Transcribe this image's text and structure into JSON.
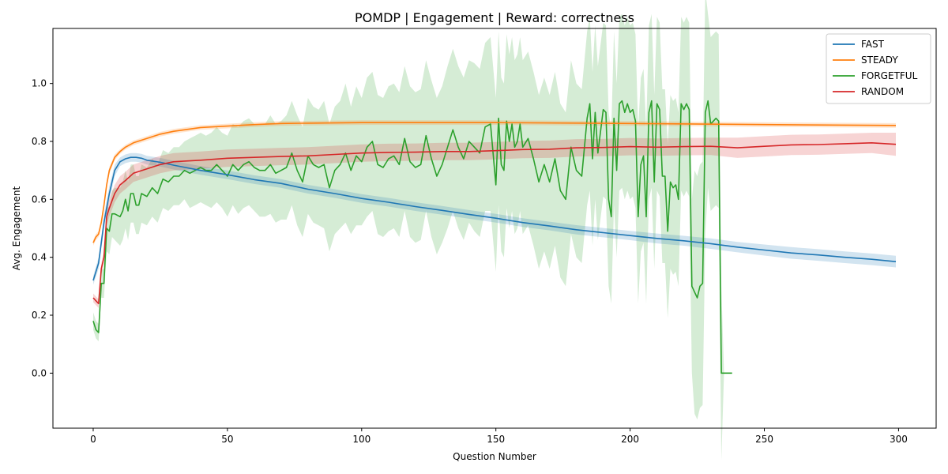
{
  "chart_data": {
    "type": "line",
    "title": "POMDP | Engagement | Reward: correctness",
    "xlabel": "Question Number",
    "ylabel": "Avg. Engagement",
    "xlim": [
      -15,
      314
    ],
    "ylim": [
      -0.19,
      1.19
    ],
    "xticks": [
      0,
      50,
      100,
      150,
      200,
      250,
      300
    ],
    "yticks": [
      0.0,
      0.2,
      0.4,
      0.6,
      0.8,
      1.0
    ],
    "legend_position": "top-right",
    "grid": false,
    "series": [
      {
        "name": "FAST",
        "color": "#1f77b4",
        "x": [
          0,
          2,
          4,
          6,
          8,
          10,
          12,
          14,
          16,
          18,
          20,
          25,
          30,
          40,
          50,
          60,
          70,
          80,
          90,
          100,
          110,
          120,
          130,
          140,
          150,
          160,
          170,
          180,
          190,
          200,
          210,
          220,
          230,
          240,
          250,
          260,
          270,
          280,
          290,
          299
        ],
        "y": [
          0.32,
          0.38,
          0.52,
          0.62,
          0.7,
          0.73,
          0.74,
          0.745,
          0.745,
          0.742,
          0.735,
          0.728,
          0.718,
          0.7,
          0.685,
          0.668,
          0.655,
          0.635,
          0.62,
          0.603,
          0.59,
          0.575,
          0.562,
          0.548,
          0.535,
          0.52,
          0.508,
          0.495,
          0.485,
          0.475,
          0.465,
          0.457,
          0.447,
          0.435,
          0.425,
          0.415,
          0.408,
          0.4,
          0.393,
          0.385
        ],
        "band": [
          0.015,
          0.02,
          0.025,
          0.025,
          0.02,
          0.015,
          0.015,
          0.015,
          0.015,
          0.015,
          0.015,
          0.015,
          0.015,
          0.015,
          0.015,
          0.015,
          0.015,
          0.015,
          0.015,
          0.015,
          0.015,
          0.015,
          0.015,
          0.015,
          0.015,
          0.015,
          0.015,
          0.016,
          0.016,
          0.016,
          0.017,
          0.017,
          0.018,
          0.018,
          0.019,
          0.02,
          0.02,
          0.02,
          0.02,
          0.02
        ]
      },
      {
        "name": "STEADY",
        "color": "#ff7f0e",
        "x": [
          0,
          1,
          2,
          3,
          4,
          5,
          6,
          8,
          10,
          12,
          15,
          20,
          25,
          30,
          40,
          50,
          60,
          70,
          80,
          100,
          150,
          200,
          250,
          299
        ],
        "y": [
          0.45,
          0.47,
          0.48,
          0.52,
          0.58,
          0.65,
          0.7,
          0.745,
          0.765,
          0.78,
          0.795,
          0.81,
          0.825,
          0.835,
          0.848,
          0.853,
          0.858,
          0.862,
          0.863,
          0.865,
          0.865,
          0.862,
          0.858,
          0.855
        ],
        "band": [
          0.01,
          0.01,
          0.01,
          0.012,
          0.012,
          0.012,
          0.012,
          0.01,
          0.008,
          0.008,
          0.008,
          0.008,
          0.008,
          0.008,
          0.008,
          0.008,
          0.008,
          0.008,
          0.008,
          0.008,
          0.008,
          0.008,
          0.008,
          0.008
        ]
      },
      {
        "name": "RANDOM",
        "color": "#d62728",
        "x": [
          0,
          1,
          2,
          3,
          4,
          5,
          6,
          8,
          10,
          12,
          15,
          20,
          25,
          30,
          40,
          50,
          60,
          70,
          80,
          90,
          100,
          110,
          120,
          130,
          140,
          150,
          160,
          170,
          180,
          190,
          200,
          210,
          220,
          230,
          240,
          250,
          260,
          270,
          280,
          290,
          299
        ],
        "y": [
          0.26,
          0.25,
          0.24,
          0.36,
          0.4,
          0.54,
          0.57,
          0.62,
          0.65,
          0.665,
          0.69,
          0.705,
          0.72,
          0.73,
          0.735,
          0.742,
          0.745,
          0.748,
          0.75,
          0.755,
          0.76,
          0.762,
          0.763,
          0.765,
          0.765,
          0.768,
          0.772,
          0.773,
          0.778,
          0.779,
          0.782,
          0.78,
          0.782,
          0.783,
          0.778,
          0.783,
          0.788,
          0.789,
          0.792,
          0.795,
          0.79
        ],
        "band": [
          0.015,
          0.015,
          0.015,
          0.02,
          0.02,
          0.03,
          0.03,
          0.03,
          0.03,
          0.03,
          0.03,
          0.03,
          0.03,
          0.03,
          0.03,
          0.03,
          0.03,
          0.03,
          0.03,
          0.03,
          0.03,
          0.03,
          0.03,
          0.03,
          0.03,
          0.03,
          0.03,
          0.03,
          0.03,
          0.03,
          0.03,
          0.03,
          0.03,
          0.03,
          0.035,
          0.035,
          0.035,
          0.035,
          0.035,
          0.035,
          0.04
        ]
      },
      {
        "name": "FORGETFUL",
        "color": "#2ca02c",
        "x": [
          0,
          1,
          2,
          3,
          4,
          5,
          6,
          7,
          8,
          10,
          11,
          12,
          13,
          14,
          15,
          16,
          17,
          18,
          20,
          22,
          24,
          26,
          28,
          30,
          32,
          34,
          36,
          38,
          40,
          42,
          44,
          46,
          48,
          50,
          52,
          54,
          56,
          58,
          60,
          62,
          64,
          66,
          68,
          70,
          72,
          74,
          76,
          78,
          80,
          82,
          84,
          86,
          88,
          90,
          92,
          94,
          96,
          98,
          100,
          102,
          104,
          106,
          108,
          110,
          112,
          114,
          116,
          118,
          120,
          122,
          124,
          126,
          128,
          130,
          132,
          134,
          136,
          138,
          140,
          142,
          144,
          146,
          148,
          150,
          151,
          152,
          153,
          154,
          155,
          156,
          157,
          158,
          159,
          160,
          162,
          164,
          166,
          168,
          170,
          172,
          174,
          176,
          178,
          180,
          182,
          184,
          185,
          186,
          187,
          188,
          190,
          191,
          192,
          193,
          194,
          195,
          196,
          197,
          198,
          199,
          200,
          201,
          202,
          203,
          204,
          205,
          206,
          207,
          208,
          209,
          210,
          211,
          212,
          213,
          214,
          215,
          216,
          217,
          218,
          219,
          220,
          221,
          222,
          223,
          224,
          225,
          226,
          227,
          228,
          229,
          230,
          231,
          232,
          233,
          234,
          235,
          236,
          237,
          238
        ],
        "y": [
          0.18,
          0.15,
          0.14,
          0.31,
          0.31,
          0.5,
          0.49,
          0.55,
          0.55,
          0.54,
          0.56,
          0.6,
          0.56,
          0.62,
          0.62,
          0.58,
          0.58,
          0.62,
          0.61,
          0.64,
          0.62,
          0.67,
          0.66,
          0.68,
          0.68,
          0.7,
          0.69,
          0.7,
          0.71,
          0.7,
          0.7,
          0.72,
          0.7,
          0.68,
          0.72,
          0.7,
          0.72,
          0.73,
          0.71,
          0.7,
          0.7,
          0.72,
          0.69,
          0.7,
          0.71,
          0.76,
          0.7,
          0.66,
          0.75,
          0.72,
          0.71,
          0.72,
          0.64,
          0.7,
          0.72,
          0.76,
          0.7,
          0.75,
          0.73,
          0.78,
          0.8,
          0.72,
          0.71,
          0.74,
          0.75,
          0.72,
          0.81,
          0.73,
          0.71,
          0.72,
          0.82,
          0.74,
          0.68,
          0.72,
          0.78,
          0.84,
          0.78,
          0.74,
          0.8,
          0.78,
          0.76,
          0.85,
          0.86,
          0.65,
          0.88,
          0.72,
          0.7,
          0.87,
          0.8,
          0.86,
          0.78,
          0.8,
          0.86,
          0.78,
          0.81,
          0.74,
          0.66,
          0.72,
          0.66,
          0.74,
          0.63,
          0.6,
          0.78,
          0.7,
          0.68,
          0.88,
          0.93,
          0.74,
          0.9,
          0.76,
          0.91,
          0.9,
          0.6,
          0.54,
          0.88,
          0.7,
          0.93,
          0.94,
          0.9,
          0.93,
          0.9,
          0.91,
          0.87,
          0.54,
          0.72,
          0.75,
          0.54,
          0.9,
          0.94,
          0.66,
          0.93,
          0.91,
          0.68,
          0.68,
          0.49,
          0.66,
          0.64,
          0.65,
          0.6,
          0.93,
          0.91,
          0.93,
          0.91,
          0.3,
          0.28,
          0.26,
          0.3,
          0.31,
          0.9,
          0.94,
          0.86,
          0.87,
          0.88,
          0.87,
          0.0,
          0.0,
          0.0,
          0.0,
          0.0
        ],
        "band": [
          0.03,
          0.03,
          0.03,
          0.05,
          0.05,
          0.08,
          0.08,
          0.08,
          0.09,
          0.1,
          0.1,
          0.1,
          0.1,
          0.1,
          0.1,
          0.1,
          0.1,
          0.1,
          0.1,
          0.1,
          0.1,
          0.1,
          0.1,
          0.1,
          0.1,
          0.1,
          0.12,
          0.12,
          0.12,
          0.12,
          0.13,
          0.13,
          0.13,
          0.14,
          0.14,
          0.15,
          0.15,
          0.15,
          0.15,
          0.16,
          0.16,
          0.17,
          0.17,
          0.17,
          0.18,
          0.18,
          0.19,
          0.19,
          0.2,
          0.2,
          0.2,
          0.22,
          0.22,
          0.22,
          0.22,
          0.24,
          0.22,
          0.24,
          0.22,
          0.24,
          0.24,
          0.24,
          0.24,
          0.25,
          0.25,
          0.25,
          0.25,
          0.26,
          0.26,
          0.26,
          0.26,
          0.27,
          0.27,
          0.27,
          0.28,
          0.28,
          0.28,
          0.28,
          0.28,
          0.29,
          0.29,
          0.29,
          0.3,
          0.3,
          0.3,
          0.3,
          0.3,
          0.3,
          0.3,
          0.3,
          0.3,
          0.3,
          0.3,
          0.3,
          0.3,
          0.3,
          0.3,
          0.3,
          0.3,
          0.3,
          0.3,
          0.3,
          0.3,
          0.3,
          0.3,
          0.3,
          0.3,
          0.3,
          0.3,
          0.3,
          0.3,
          0.3,
          0.3,
          0.3,
          0.3,
          0.3,
          0.3,
          0.3,
          0.3,
          0.3,
          0.3,
          0.3,
          0.3,
          0.3,
          0.3,
          0.3,
          0.3,
          0.3,
          0.3,
          0.3,
          0.3,
          0.3,
          0.3,
          0.3,
          0.3,
          0.3,
          0.3,
          0.3,
          0.3,
          0.3,
          0.3,
          0.3,
          0.3,
          0.3,
          0.42,
          0.42,
          0.42,
          0.42,
          0.42,
          0.3,
          0.3,
          0.3,
          0.3,
          0.3,
          0.3,
          0.0,
          0.0,
          0.0,
          0.0,
          0.0
        ]
      }
    ]
  }
}
